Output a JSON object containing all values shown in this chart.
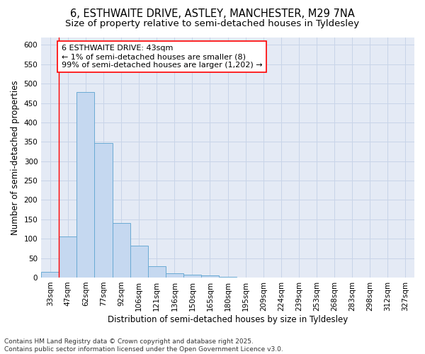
{
  "title1": "6, ESTHWAITE DRIVE, ASTLEY, MANCHESTER, M29 7NA",
  "title2": "Size of property relative to semi-detached houses in Tyldesley",
  "xlabel": "Distribution of semi-detached houses by size in Tyldesley",
  "ylabel": "Number of semi-detached properties",
  "categories": [
    "33sqm",
    "47sqm",
    "62sqm",
    "77sqm",
    "92sqm",
    "106sqm",
    "121sqm",
    "136sqm",
    "150sqm",
    "165sqm",
    "180sqm",
    "195sqm",
    "209sqm",
    "224sqm",
    "239sqm",
    "253sqm",
    "268sqm",
    "283sqm",
    "298sqm",
    "312sqm",
    "327sqm"
  ],
  "values": [
    15,
    105,
    478,
    347,
    141,
    83,
    30,
    11,
    8,
    6,
    1,
    0,
    0,
    0,
    0,
    0,
    0,
    0,
    0,
    0,
    0
  ],
  "bar_color": "#c5d8f0",
  "bar_edge_color": "#6aaad4",
  "grid_color": "#c8d4e8",
  "bg_color": "#e4eaf5",
  "annot_line1": "6 ESTHWAITE DRIVE: 43sqm",
  "annot_line2": "← 1% of semi-detached houses are smaller (8)",
  "annot_line3": "99% of semi-detached houses are larger (1,202) →",
  "ylim": [
    0,
    620
  ],
  "yticks": [
    0,
    50,
    100,
    150,
    200,
    250,
    300,
    350,
    400,
    450,
    500,
    550,
    600
  ],
  "footnote": "Contains HM Land Registry data © Crown copyright and database right 2025.\nContains public sector information licensed under the Open Government Licence v3.0.",
  "title1_fontsize": 10.5,
  "title2_fontsize": 9.5,
  "xlabel_fontsize": 8.5,
  "ylabel_fontsize": 8.5,
  "tick_fontsize": 7.5,
  "annot_fontsize": 8,
  "footnote_fontsize": 6.5
}
